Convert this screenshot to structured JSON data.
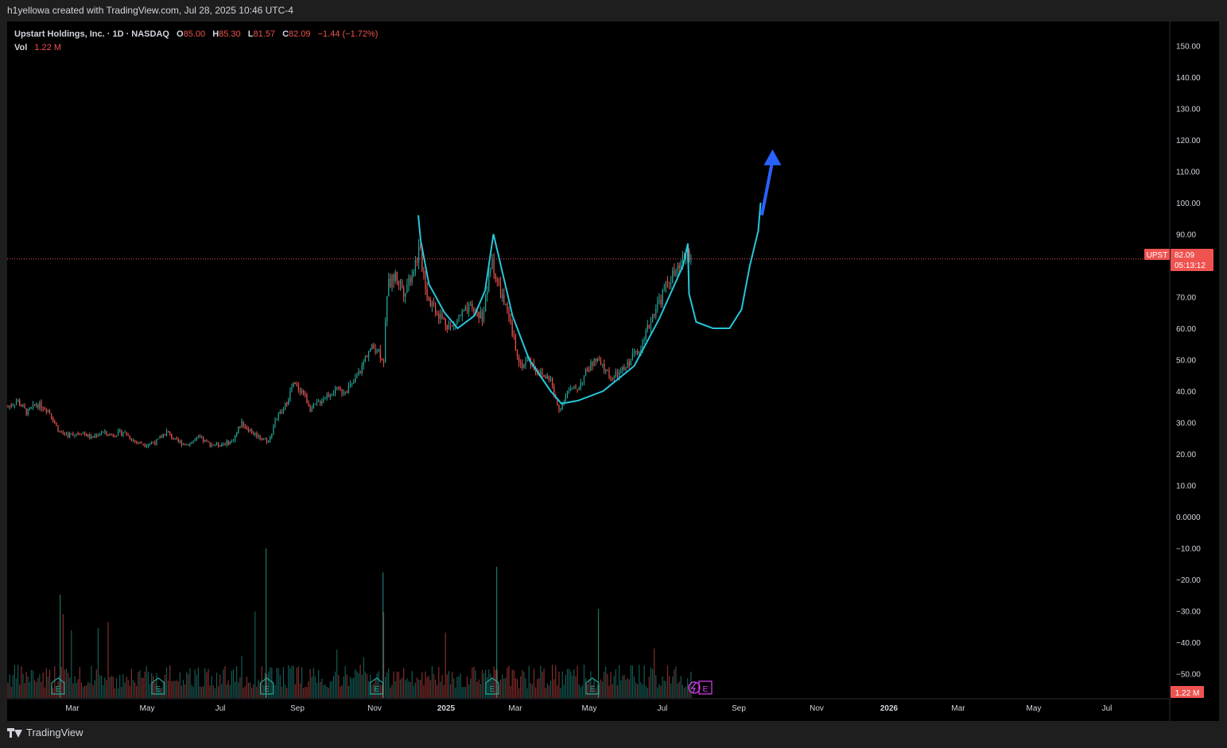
{
  "attribution": "h1yellowa created with TradingView.com, Jul 28, 2025 10:46 UTC-4",
  "legend": {
    "symbol_line": "Upstart Holdings, Inc. · 1D · NASDAQ",
    "o_label": "O",
    "o_value": "85.00",
    "h_label": "H",
    "h_value": "85.30",
    "l_label": "L",
    "l_value": "81.57",
    "c_label": "C",
    "c_value": "82.09",
    "change": "−1.44 (−1.72%)",
    "vol_label": "Vol",
    "vol_value": "1.22 M"
  },
  "price_axis": {
    "ticks": [
      "150.00",
      "140.00",
      "130.00",
      "120.00",
      "110.00",
      "100.00",
      "90.00",
      "80.00",
      "70.00",
      "60.00",
      "50.00",
      "40.00",
      "30.00",
      "20.00",
      "10.00",
      "0.0000",
      "−10.00",
      "−20.00",
      "−30.00",
      "−40.00",
      "−50.00"
    ],
    "tick_values": [
      150,
      140,
      130,
      120,
      110,
      100,
      90,
      80,
      70,
      60,
      50,
      40,
      30,
      20,
      10,
      0,
      -10,
      -20,
      -30,
      -40,
      -50
    ]
  },
  "time_axis": {
    "labels": [
      "Mar",
      "May",
      "Jul",
      "Sep",
      "Nov",
      "2025",
      "Mar",
      "May",
      "Jul",
      "Sep",
      "Nov",
      "2026",
      "Mar",
      "May",
      "Jul"
    ],
    "bold": [
      false,
      false,
      false,
      false,
      false,
      true,
      false,
      false,
      false,
      false,
      false,
      true,
      false,
      false,
      false
    ]
  },
  "price_badge": {
    "symbol": "UPST",
    "price": "82.09",
    "countdown": "05:13:12"
  },
  "volume_badge": "1.22 M",
  "earnings_marker": "E",
  "footer_brand": "TradingView",
  "colors": {
    "up": "#26a69a",
    "down": "#ef5350",
    "pattern": "#26c6da",
    "arrow": "#2962ff",
    "dividends": "#e040fb",
    "background": "#000000"
  },
  "chart_data": {
    "type": "candlestick",
    "title": "Upstart Holdings, Inc. · 1D · NASDAQ",
    "ylim": [
      -55,
      155
    ],
    "last_price": 82.09,
    "price_path": [
      [
        "2024-01-02",
        35
      ],
      [
        "2024-01-10",
        37
      ],
      [
        "2024-01-18",
        33
      ],
      [
        "2024-01-26",
        36
      ],
      [
        "2024-02-05",
        34
      ],
      [
        "2024-02-14",
        27
      ],
      [
        "2024-02-22",
        26
      ],
      [
        "2024-03-04",
        27
      ],
      [
        "2024-03-12",
        25
      ],
      [
        "2024-03-20",
        27
      ],
      [
        "2024-03-28",
        26
      ],
      [
        "2024-04-08",
        27
      ],
      [
        "2024-04-17",
        24
      ],
      [
        "2024-04-26",
        23
      ],
      [
        "2024-05-06",
        24
      ],
      [
        "2024-05-14",
        27
      ],
      [
        "2024-05-22",
        24
      ],
      [
        "2024-05-31",
        23
      ],
      [
        "2024-06-10",
        25
      ],
      [
        "2024-06-20",
        23
      ],
      [
        "2024-06-28",
        23
      ],
      [
        "2024-07-08",
        24
      ],
      [
        "2024-07-16",
        30
      ],
      [
        "2024-07-24",
        27
      ],
      [
        "2024-08-02",
        25
      ],
      [
        "2024-08-08",
        24
      ],
      [
        "2024-08-13",
        31
      ],
      [
        "2024-08-20",
        34
      ],
      [
        "2024-08-28",
        42
      ],
      [
        "2024-09-05",
        40
      ],
      [
        "2024-09-12",
        34
      ],
      [
        "2024-09-20",
        37
      ],
      [
        "2024-09-30",
        40
      ],
      [
        "2024-10-08",
        40
      ],
      [
        "2024-10-17",
        42
      ],
      [
        "2024-10-24",
        47
      ],
      [
        "2024-10-30",
        53
      ],
      [
        "2024-11-06",
        54
      ],
      [
        "2024-11-12",
        50
      ],
      [
        "2024-11-15",
        73
      ],
      [
        "2024-11-22",
        77
      ],
      [
        "2024-11-29",
        72
      ],
      [
        "2024-12-06",
        78
      ],
      [
        "2024-12-12",
        85
      ],
      [
        "2024-12-19",
        70
      ],
      [
        "2024-12-31",
        63
      ],
      [
        "2025-01-08",
        60
      ],
      [
        "2025-01-15",
        64
      ],
      [
        "2025-01-24",
        66
      ],
      [
        "2025-02-03",
        64
      ],
      [
        "2025-02-11",
        82
      ],
      [
        "2025-02-14",
        76
      ],
      [
        "2025-02-21",
        68
      ],
      [
        "2025-02-28",
        58
      ],
      [
        "2025-03-07",
        48
      ],
      [
        "2025-03-14",
        50
      ],
      [
        "2025-03-24",
        45
      ],
      [
        "2025-04-01",
        44
      ],
      [
        "2025-04-04",
        38
      ],
      [
        "2025-04-08",
        34
      ],
      [
        "2025-04-15",
        40
      ],
      [
        "2025-04-24",
        41
      ],
      [
        "2025-05-02",
        47
      ],
      [
        "2025-05-09",
        50
      ],
      [
        "2025-05-16",
        47
      ],
      [
        "2025-05-23",
        44
      ],
      [
        "2025-06-02",
        47
      ],
      [
        "2025-06-10",
        52
      ],
      [
        "2025-06-18",
        56
      ],
      [
        "2025-06-27",
        66
      ],
      [
        "2025-07-03",
        70
      ],
      [
        "2025-07-10",
        76
      ],
      [
        "2025-07-17",
        78
      ],
      [
        "2025-07-24",
        84
      ],
      [
        "2025-07-28",
        82.09
      ]
    ],
    "cup_and_handle_drawing": [
      [
        "2024-12-11",
        96
      ],
      [
        "2024-12-13",
        88
      ],
      [
        "2024-12-20",
        74
      ],
      [
        "2025-01-02",
        65
      ],
      [
        "2025-01-13",
        60
      ],
      [
        "2025-01-27",
        64
      ],
      [
        "2025-02-05",
        72
      ],
      [
        "2025-02-12",
        90
      ],
      [
        "2025-02-17",
        82
      ],
      [
        "2025-02-28",
        64
      ],
      [
        "2025-03-14",
        50
      ],
      [
        "2025-04-01",
        40
      ],
      [
        "2025-04-10",
        36
      ],
      [
        "2025-04-24",
        37
      ],
      [
        "2025-05-15",
        40
      ],
      [
        "2025-06-10",
        48
      ],
      [
        "2025-07-01",
        63
      ],
      [
        "2025-07-21",
        80
      ],
      [
        "2025-07-25",
        87
      ],
      [
        "2025-07-26",
        71
      ],
      [
        "2025-08-01",
        62
      ],
      [
        "2025-08-15",
        60
      ],
      [
        "2025-08-29",
        60
      ],
      [
        "2025-09-08",
        66
      ],
      [
        "2025-09-15",
        80
      ],
      [
        "2025-09-22",
        91
      ],
      [
        "2025-09-24",
        100
      ]
    ],
    "arrow": {
      "from": [
        "2025-09-25",
        96
      ],
      "to": [
        "2025-10-04",
        117
      ]
    },
    "earnings_dates": [
      "2024-02-13",
      "2024-05-07",
      "2024-08-06",
      "2024-11-06",
      "2025-02-11",
      "2025-05-06"
    ]
  }
}
